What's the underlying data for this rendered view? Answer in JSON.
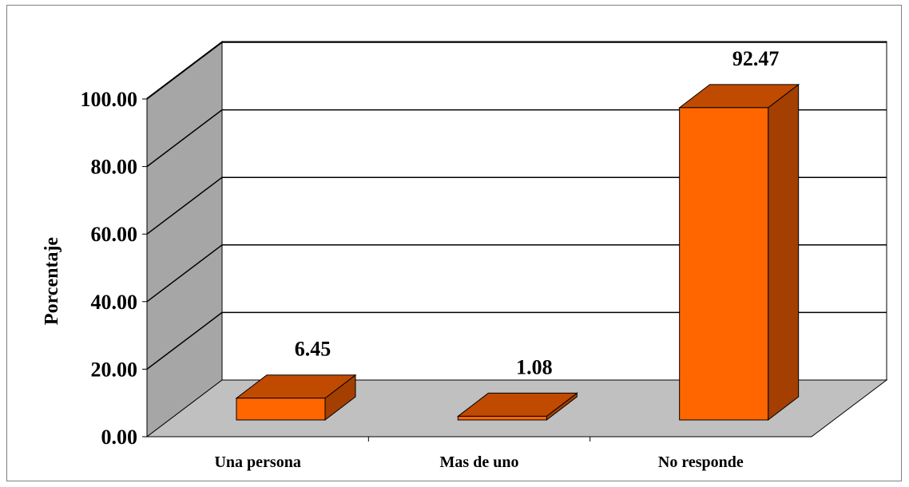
{
  "chart_data": {
    "type": "bar",
    "style": "3d-column",
    "categories": [
      "Una persona",
      "Mas de uno",
      "No responde"
    ],
    "values": [
      6.45,
      1.08,
      92.47
    ],
    "value_labels": [
      "6.45",
      "1.08",
      "92.47"
    ],
    "title": "",
    "xlabel": "",
    "ylabel": "Porcentaje",
    "ylim": [
      0,
      100
    ],
    "yticks": [
      0,
      20,
      40,
      60,
      80,
      100
    ],
    "ytick_labels": [
      "0.00",
      "20.00",
      "40.00",
      "60.00",
      "80.00",
      "100.00"
    ],
    "grid": true,
    "legend": "none"
  },
  "colors": {
    "bar_front": "#ff6600",
    "bar_top": "#c04a00",
    "bar_side": "#a33f00",
    "back_wall": "#ffffff",
    "side_wall": "#a6a6a6",
    "floor": "#c0c0c0",
    "gridline": "#000000"
  }
}
